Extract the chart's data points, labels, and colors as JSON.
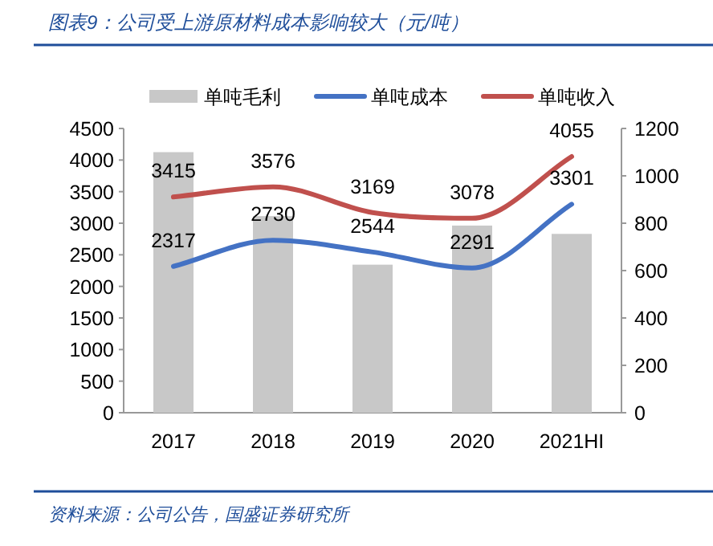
{
  "chart_data": {
    "type": "bar",
    "title": "图表9：公司受上游原材料成本影响较大（元/吨）",
    "categories": [
      "2017",
      "2018",
      "2019",
      "2020",
      "2021HI"
    ],
    "series": [
      {
        "name": "单吨毛利",
        "axis": "y2",
        "color": "#c8c8c8",
        "values": [
          1100,
          830,
          625,
          790,
          755
        ]
      },
      {
        "name": "单吨成本",
        "type": "line",
        "color": "#4472c4",
        "values": [
          2317,
          2730,
          2544,
          2291,
          3301
        ],
        "value_labels": [
          "2317",
          "2730",
          "2544",
          "2291",
          "3301"
        ]
      },
      {
        "name": "单吨收入",
        "type": "line",
        "color": "#c0504d",
        "values": [
          3415,
          3576,
          3169,
          3078,
          4055
        ],
        "value_labels": [
          "3415",
          "3576",
          "3169",
          "3078",
          "4055"
        ]
      }
    ],
    "ylim": [
      0,
      4500
    ],
    "yticks": [
      0,
      500,
      1000,
      1500,
      2000,
      2500,
      3000,
      3500,
      4000,
      4500
    ],
    "y2lim": [
      0,
      1200
    ],
    "y2ticks": [
      0,
      200,
      400,
      600,
      800,
      1000,
      1200
    ],
    "legend": "top",
    "annotations": [
      "资料来源：公司公告，国盛证券研究所"
    ]
  }
}
